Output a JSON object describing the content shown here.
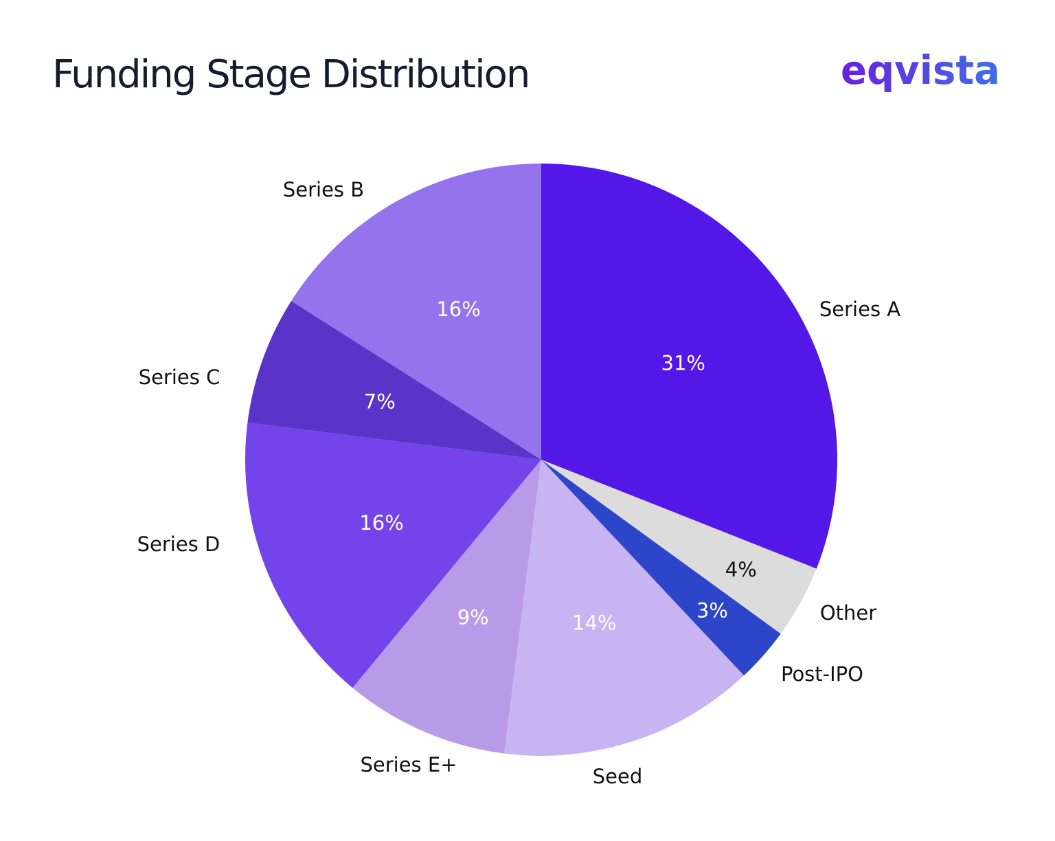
{
  "header": {
    "title": "Funding Stage Distribution",
    "logo_text": "eqvista",
    "logo_colors": [
      "#6a1fe0",
      "#3f6fe6"
    ]
  },
  "chart_data": {
    "type": "pie",
    "title": "Funding Stage Distribution",
    "start_angle_deg": 0,
    "direction": "clockwise",
    "slices": [
      {
        "label": "Series A",
        "value": 31,
        "value_label": "31%",
        "color": "#5317e8",
        "text_color": "#ffffff"
      },
      {
        "label": "Other",
        "value": 4,
        "value_label": "4%",
        "color": "#dcdcdc",
        "text_color": "#111111"
      },
      {
        "label": "Post-IPO",
        "value": 3,
        "value_label": "3%",
        "color": "#2d46c9",
        "text_color": "#ffffff"
      },
      {
        "label": "Seed",
        "value": 14,
        "value_label": "14%",
        "color": "#c9b4f3",
        "text_color": "#ffffff"
      },
      {
        "label": "Series E+",
        "value": 9,
        "value_label": "9%",
        "color": "#b79ae8",
        "text_color": "#ffffff"
      },
      {
        "label": "Series D",
        "value": 16,
        "value_label": "16%",
        "color": "#7444ea",
        "text_color": "#ffffff"
      },
      {
        "label": "Series C",
        "value": 7,
        "value_label": "7%",
        "color": "#5a34c9",
        "text_color": "#ffffff"
      },
      {
        "label": "Series B",
        "value": 16,
        "value_label": "16%",
        "color": "#9573ec",
        "text_color": "#ffffff"
      }
    ]
  }
}
